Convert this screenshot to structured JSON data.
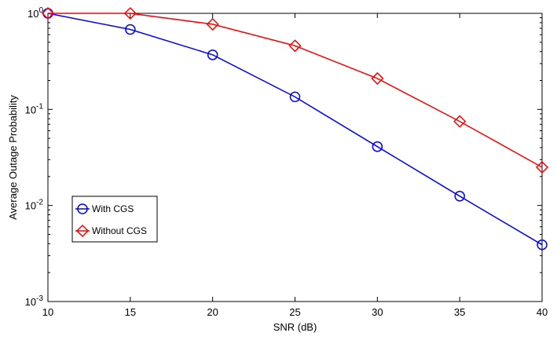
{
  "chart_data": {
    "type": "line",
    "title": "",
    "xlabel": "SNR (dB)",
    "ylabel": "Average Outage Probability",
    "yscale": "log",
    "xlim": [
      10,
      40
    ],
    "ylim": [
      0.001,
      1
    ],
    "x": [
      10,
      15,
      20,
      25,
      30,
      35,
      40
    ],
    "x_ticks": [
      "10",
      "15",
      "20",
      "25",
      "30",
      "35",
      "40"
    ],
    "y_ticks": [
      {
        "value": 1,
        "base": "10",
        "exp": "0"
      },
      {
        "value": 0.1,
        "base": "10",
        "exp": "-1"
      },
      {
        "value": 0.01,
        "base": "10",
        "exp": "-2"
      },
      {
        "value": 0.001,
        "base": "10",
        "exp": "-3"
      }
    ],
    "grid": false,
    "legend_position": "lower-left",
    "series": [
      {
        "name": "With CGS",
        "color": "#0000ff",
        "marker": "circle",
        "values": [
          1.0,
          0.68,
          0.37,
          0.135,
          0.041,
          0.0125,
          0.0039
        ]
      },
      {
        "name": "Without CGS",
        "color": "#ff0000",
        "marker": "diamond",
        "values": [
          1.0,
          1.0,
          0.77,
          0.46,
          0.21,
          0.075,
          0.025
        ]
      }
    ]
  }
}
